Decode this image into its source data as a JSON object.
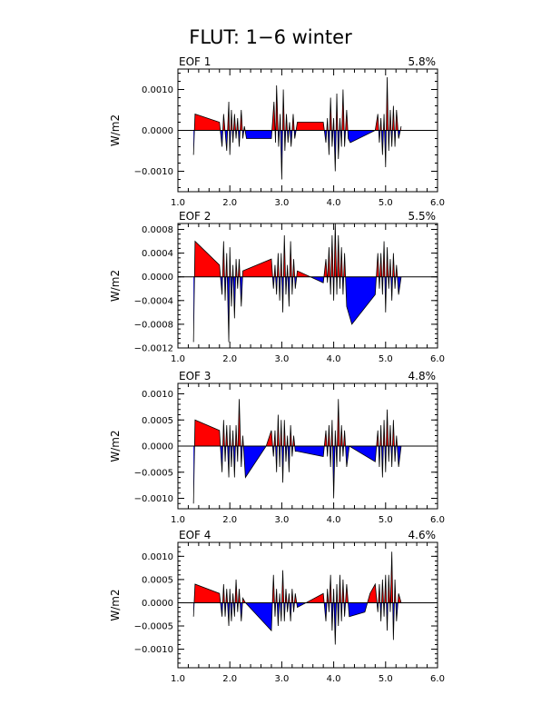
{
  "title": "FLUT: 1−6 winter",
  "chart_data": [
    {
      "type": "area",
      "panel_label": "EOF 1",
      "variance_label": "5.8%",
      "ylabel": "W/m2",
      "xlim": [
        1.0,
        6.0
      ],
      "ylim": [
        -0.0015,
        0.0015
      ],
      "xticks": [
        "1.0",
        "2.0",
        "3.0",
        "4.0",
        "5.0",
        "6.0"
      ],
      "yticks": [
        {
          "v": 0.001,
          "label": "0.0010"
        },
        {
          "v": 0.0,
          "label": "0.0000"
        },
        {
          "v": -0.001,
          "label": "−0.0010"
        }
      ],
      "colors": {
        "positive": "#ff0000",
        "negative": "#0000ff"
      },
      "x": [
        1.3,
        1.33,
        1.8,
        1.85,
        1.88,
        1.9,
        1.94,
        1.98,
        2.0,
        2.03,
        2.06,
        2.09,
        2.12,
        2.15,
        2.18,
        2.22,
        2.25,
        2.28,
        2.32,
        2.8,
        2.85,
        2.88,
        2.9,
        2.94,
        2.97,
        3.0,
        3.03,
        3.06,
        3.09,
        3.12,
        3.15,
        3.18,
        3.22,
        3.25,
        3.3,
        3.8,
        3.85,
        3.88,
        3.91,
        3.94,
        3.97,
        4.0,
        4.03,
        4.06,
        4.09,
        4.12,
        4.15,
        4.18,
        4.21,
        4.25,
        4.28,
        4.32,
        4.8,
        4.85,
        4.88,
        4.91,
        4.94,
        4.97,
        5.0,
        5.03,
        5.06,
        5.09,
        5.12,
        5.15,
        5.18,
        5.21,
        5.25,
        5.3
      ],
      "y": [
        -0.0006,
        0.0004,
        0.0002,
        -0.0004,
        0.0004,
        0.0001,
        -0.0005,
        0.0007,
        -0.0006,
        0.0005,
        -0.0003,
        0.0004,
        -0.0002,
        0.0003,
        -0.0004,
        0.0005,
        -0.0002,
        0.0001,
        -0.0002,
        -0.0002,
        0.0007,
        -0.0003,
        0.0011,
        -0.0004,
        0.0004,
        -0.0012,
        0.001,
        -0.0005,
        0.0004,
        -0.0003,
        0.0002,
        -0.0004,
        0.0004,
        -0.0002,
        0.0002,
        0.0002,
        -0.0003,
        0.0003,
        -0.0006,
        0.0008,
        -0.0004,
        0.0003,
        -0.001,
        0.0009,
        -0.0007,
        0.0003,
        -0.0004,
        0.001,
        -0.0004,
        0.0005,
        -0.0002,
        -0.0003,
        0.0,
        0.0004,
        -0.0003,
        0.0003,
        -0.0006,
        0.0004,
        -0.0009,
        0.0013,
        -0.0005,
        0.0005,
        -0.0004,
        0.0006,
        -0.0004,
        0.0005,
        -0.0002,
        0.0001
      ]
    },
    {
      "type": "area",
      "panel_label": "EOF 2",
      "variance_label": "5.5%",
      "ylabel": "W/m2",
      "xlim": [
        1.0,
        6.0
      ],
      "ylim": [
        -0.0012,
        0.0009
      ],
      "xticks": [
        "1.0",
        "2.0",
        "3.0",
        "4.0",
        "5.0",
        "6.0"
      ],
      "yticks": [
        {
          "v": 0.0008,
          "label": "0.0008"
        },
        {
          "v": 0.0004,
          "label": "0.0004"
        },
        {
          "v": 0.0,
          "label": "0.0000"
        },
        {
          "v": -0.0004,
          "label": "−0.0004"
        },
        {
          "v": -0.0008,
          "label": "−0.0008"
        },
        {
          "v": -0.0012,
          "label": "−0.0012"
        }
      ],
      "colors": {
        "positive": "#ff0000",
        "negative": "#0000ff"
      },
      "x": [
        1.3,
        1.33,
        1.8,
        1.85,
        1.88,
        1.91,
        1.94,
        1.98,
        2.0,
        2.03,
        2.06,
        2.09,
        2.12,
        2.15,
        2.18,
        2.22,
        2.25,
        2.8,
        2.84,
        2.87,
        2.9,
        2.93,
        2.96,
        2.99,
        3.02,
        3.05,
        3.08,
        3.11,
        3.14,
        3.17,
        3.2,
        3.23,
        3.26,
        3.3,
        3.8,
        3.85,
        3.88,
        3.91,
        3.94,
        3.97,
        4.0,
        4.03,
        4.06,
        4.09,
        4.12,
        4.15,
        4.18,
        4.21,
        4.25,
        4.35,
        4.8,
        4.85,
        4.88,
        4.91,
        4.94,
        4.97,
        5.0,
        5.03,
        5.06,
        5.09,
        5.12,
        5.15,
        5.18,
        5.21,
        5.25,
        5.3
      ],
      "y": [
        -0.0011,
        0.0006,
        0.0002,
        -0.0003,
        0.0006,
        -0.0004,
        0.0004,
        -0.0011,
        0.0005,
        -0.0005,
        0.0002,
        -0.0007,
        0.0003,
        -0.0002,
        0.0003,
        -0.0005,
        0.0001,
        0.0003,
        -0.0002,
        0.0002,
        -0.0003,
        0.0004,
        -0.0004,
        0.0004,
        -0.0006,
        0.0007,
        -0.0003,
        0.0002,
        -0.0005,
        0.0006,
        -0.0003,
        0.0003,
        -0.0002,
        0.0001,
        -0.0001,
        0.0003,
        -0.0001,
        0.0005,
        -0.0003,
        0.0007,
        -0.0004,
        0.0009,
        -0.0003,
        0.0007,
        -0.0002,
        0.0005,
        -0.0003,
        0.0004,
        -0.0005,
        -0.0008,
        -0.0003,
        0.0004,
        -0.0002,
        0.0004,
        -0.0003,
        0.0006,
        -0.0006,
        0.0005,
        -0.0002,
        0.0003,
        -0.0004,
        0.0004,
        -0.0002,
        0.0002,
        -0.0003,
        0.0
      ]
    },
    {
      "type": "area",
      "panel_label": "EOF 3",
      "variance_label": "4.8%",
      "ylabel": "W/m2",
      "xlim": [
        1.0,
        6.0
      ],
      "ylim": [
        -0.0012,
        0.0012
      ],
      "xticks": [
        "1.0",
        "2.0",
        "3.0",
        "4.0",
        "5.0",
        "6.0"
      ],
      "yticks": [
        {
          "v": 0.001,
          "label": "0.0010"
        },
        {
          "v": 0.0005,
          "label": "0.0005"
        },
        {
          "v": 0.0,
          "label": "0.0000"
        },
        {
          "v": -0.0005,
          "label": "−0.0005"
        },
        {
          "v": -0.001,
          "label": "−0.0010"
        }
      ],
      "colors": {
        "positive": "#ff0000",
        "negative": "#0000ff"
      },
      "x": [
        1.3,
        1.33,
        1.8,
        1.85,
        1.88,
        1.91,
        1.94,
        1.98,
        2.0,
        2.03,
        2.06,
        2.09,
        2.12,
        2.15,
        2.18,
        2.22,
        2.25,
        2.3,
        2.7,
        2.8,
        2.84,
        2.87,
        2.9,
        2.93,
        2.96,
        2.99,
        3.02,
        3.05,
        3.08,
        3.11,
        3.14,
        3.17,
        3.2,
        3.23,
        3.26,
        3.3,
        3.8,
        3.85,
        3.88,
        3.91,
        3.94,
        3.97,
        4.0,
        4.03,
        4.06,
        4.09,
        4.12,
        4.15,
        4.18,
        4.21,
        4.25,
        4.3,
        4.8,
        4.85,
        4.88,
        4.91,
        4.94,
        4.97,
        5.0,
        5.03,
        5.06,
        5.09,
        5.12,
        5.15,
        5.18,
        5.21,
        5.25,
        5.3
      ],
      "y": [
        -0.0011,
        0.0005,
        0.0003,
        -0.0005,
        0.0005,
        -0.0003,
        0.0004,
        -0.0006,
        0.0004,
        -0.0004,
        0.0003,
        -0.0006,
        0.0004,
        -0.0003,
        0.0009,
        -0.0004,
        0.0002,
        -0.0006,
        0.0,
        0.0003,
        -0.0002,
        0.0003,
        -0.0005,
        0.0006,
        -0.0004,
        0.0005,
        -0.0007,
        0.0005,
        -0.0003,
        0.0002,
        -0.0005,
        0.0004,
        -0.0002,
        0.0002,
        -0.0001,
        -0.0001,
        -0.0002,
        0.0003,
        -0.0002,
        0.0004,
        -0.0004,
        0.0005,
        -0.001,
        0.0003,
        -0.0004,
        0.0009,
        -0.0003,
        0.0004,
        -0.0002,
        0.0003,
        -0.0004,
        0.0,
        -0.0003,
        0.0003,
        -0.0004,
        0.0004,
        -0.0006,
        0.0005,
        -0.0005,
        0.0007,
        -0.0003,
        0.0004,
        -0.0004,
        0.0005,
        -0.0003,
        0.0002,
        -0.0004,
        0.0
      ]
    },
    {
      "type": "area",
      "panel_label": "EOF 4",
      "variance_label": "4.6%",
      "ylabel": "W/m2",
      "xlim": [
        1.0,
        6.0
      ],
      "ylim": [
        -0.0014,
        0.0013
      ],
      "xticks": [
        "1.0",
        "2.0",
        "3.0",
        "4.0",
        "5.0",
        "6.0"
      ],
      "yticks": [
        {
          "v": 0.001,
          "label": "0.0010"
        },
        {
          "v": 0.0005,
          "label": "0.0005"
        },
        {
          "v": 0.0,
          "label": "0.0000"
        },
        {
          "v": -0.0005,
          "label": "−0.0005"
        },
        {
          "v": -0.001,
          "label": "−0.0010"
        }
      ],
      "colors": {
        "positive": "#ff0000",
        "negative": "#0000ff"
      },
      "x": [
        1.3,
        1.33,
        1.8,
        1.85,
        1.88,
        1.91,
        1.94,
        1.98,
        2.0,
        2.03,
        2.06,
        2.09,
        2.12,
        2.15,
        2.18,
        2.22,
        2.25,
        2.3,
        2.8,
        2.84,
        2.87,
        2.9,
        2.93,
        2.96,
        2.99,
        3.02,
        3.05,
        3.08,
        3.11,
        3.14,
        3.17,
        3.2,
        3.23,
        3.26,
        3.3,
        3.8,
        3.85,
        3.88,
        3.91,
        3.94,
        3.97,
        4.0,
        4.03,
        4.06,
        4.09,
        4.12,
        4.15,
        4.18,
        4.21,
        4.25,
        4.3,
        4.6,
        4.7,
        4.8,
        4.85,
        4.88,
        4.91,
        4.94,
        4.97,
        5.0,
        5.03,
        5.06,
        5.09,
        5.12,
        5.15,
        5.18,
        5.21,
        5.25,
        5.3
      ],
      "y": [
        -0.0003,
        0.0004,
        0.0002,
        -0.0003,
        0.0004,
        -0.0003,
        0.0003,
        -0.0005,
        0.0003,
        -0.0004,
        0.0002,
        -0.0003,
        0.0005,
        -0.0002,
        0.0003,
        -0.0004,
        0.0001,
        0.0,
        -0.0006,
        0.0006,
        -0.0003,
        0.0003,
        -0.0005,
        0.0002,
        -0.0004,
        0.0007,
        -0.0004,
        0.0003,
        -0.0002,
        0.0002,
        -0.0004,
        0.0003,
        -0.0002,
        0.0002,
        -0.0001,
        0.0002,
        -0.0004,
        0.0003,
        -0.0002,
        0.0006,
        -0.0006,
        0.0003,
        -0.0009,
        0.0004,
        -0.0005,
        0.0006,
        -0.0004,
        0.0005,
        -0.0003,
        0.0004,
        -0.0003,
        -0.0002,
        0.0002,
        0.0004,
        -0.0002,
        0.0004,
        -0.0004,
        0.0005,
        -0.0003,
        0.0006,
        -0.0006,
        0.0006,
        -0.0002,
        0.0011,
        -0.0008,
        0.0005,
        -0.0004,
        0.0002,
        0.0
      ]
    }
  ]
}
